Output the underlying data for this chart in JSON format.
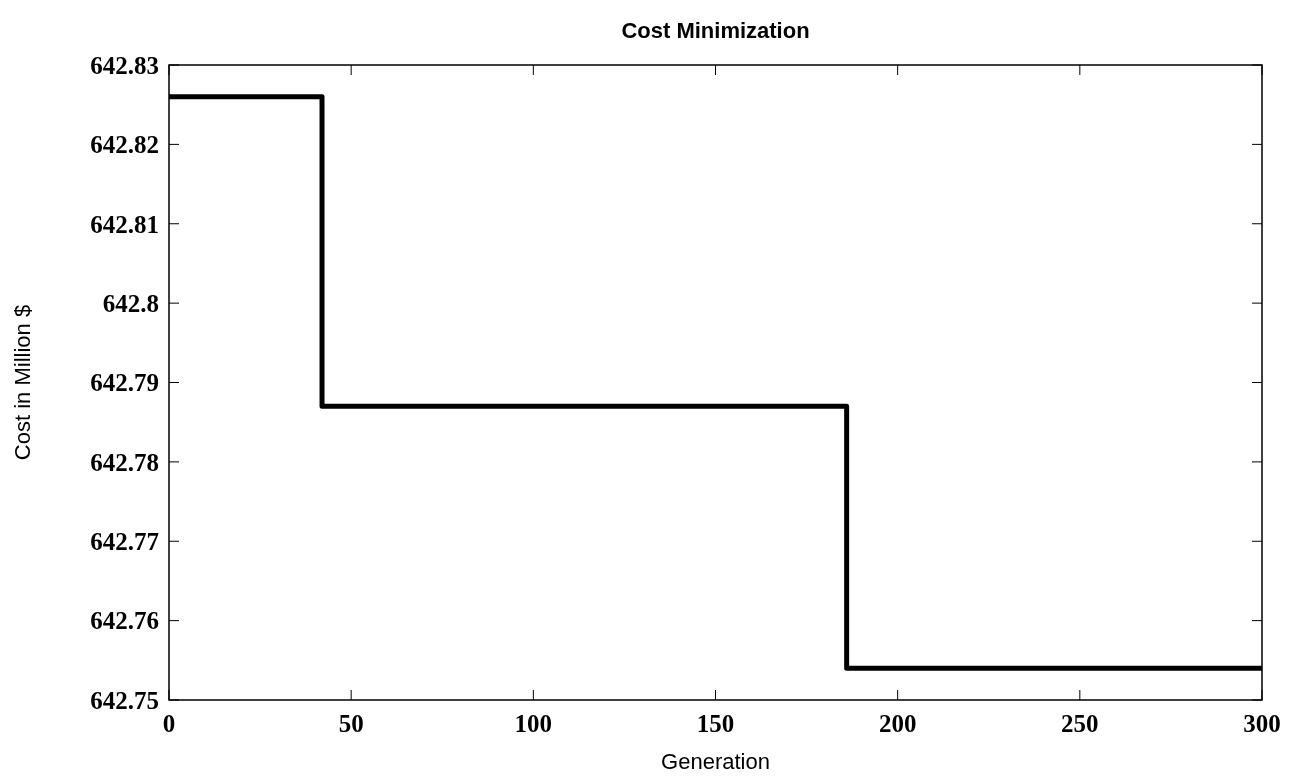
{
  "chart_data": {
    "type": "step",
    "title": "Cost Minimization",
    "xlabel": "Generation",
    "ylabel": "Cost in Million $",
    "x": [
      0,
      42,
      186,
      300
    ],
    "series": [
      {
        "color": "#000000",
        "values": [
          642.826,
          642.787,
          642.754,
          642.754
        ]
      }
    ],
    "xlim": [
      0,
      300
    ],
    "xticks": [
      0,
      50,
      100,
      150,
      200,
      250,
      300
    ],
    "ylim": [
      642.75,
      642.83
    ],
    "yticks": [
      642.75,
      642.76,
      642.77,
      642.78,
      642.79,
      642.8,
      642.81,
      642.82,
      642.83
    ],
    "grid": false,
    "marker": "none",
    "line_style": "solid"
  }
}
